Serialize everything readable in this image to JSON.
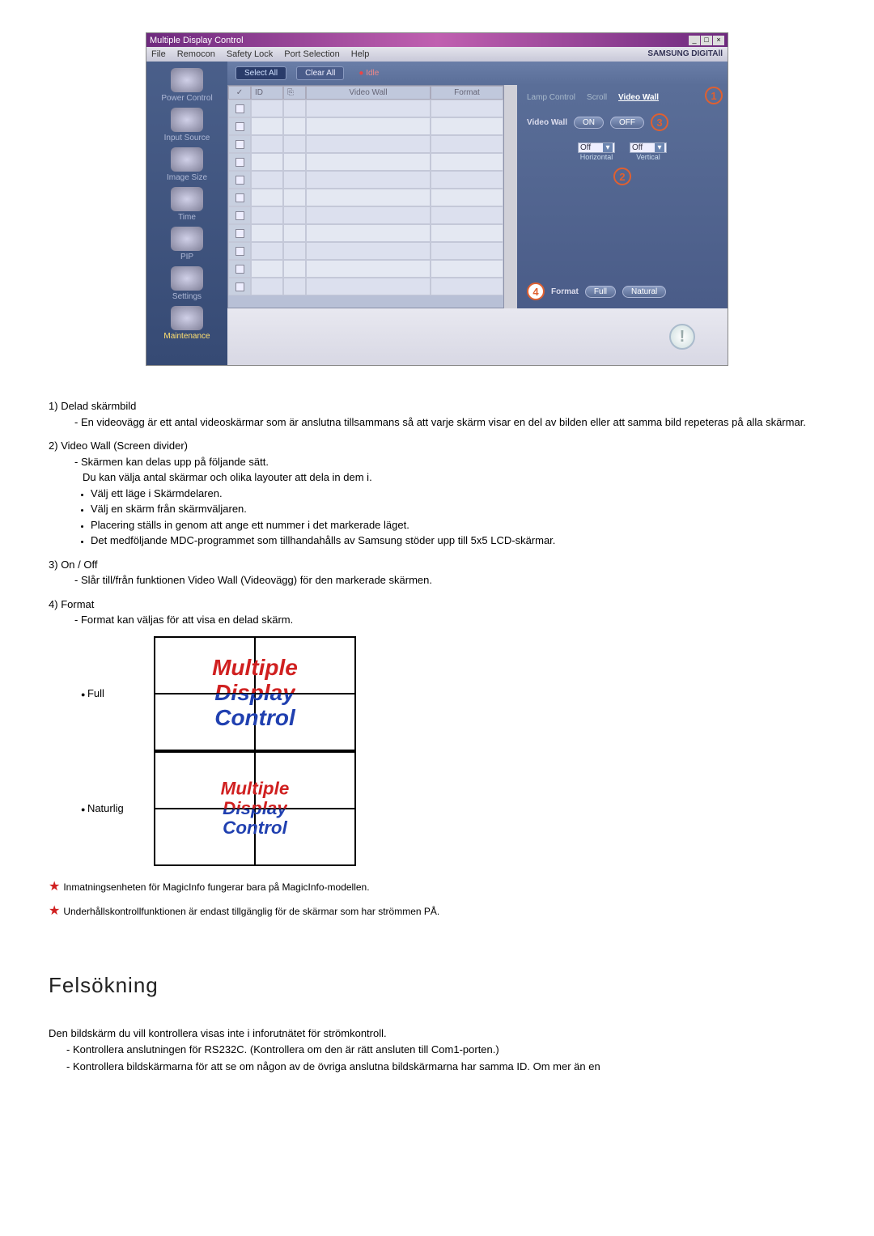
{
  "app": {
    "title": "Multiple Display Control",
    "menu": [
      "File",
      "Remocon",
      "Safety Lock",
      "Port Selection",
      "Help"
    ],
    "brand": "SAMSUNG DIGITAll"
  },
  "sidebar": {
    "items": [
      {
        "label": "Power Control"
      },
      {
        "label": "Input Source"
      },
      {
        "label": "Image Size"
      },
      {
        "label": "Time"
      },
      {
        "label": "PIP"
      },
      {
        "label": "Settings"
      },
      {
        "label": "Maintenance"
      }
    ]
  },
  "toolbar": {
    "select_all": "Select All",
    "clear_all": "Clear All",
    "idle": "Idle"
  },
  "grid": {
    "headers": {
      "chk": "✓",
      "id": "ID",
      "st": "⎘",
      "vw": "Video Wall",
      "fmt": "Format"
    },
    "rows": 11
  },
  "right": {
    "tabs": [
      "Lamp Control",
      "Scroll",
      "Video Wall"
    ],
    "active_tab": 2,
    "videowall_label": "Video Wall",
    "on": "ON",
    "off": "OFF",
    "horiz_label": "Horizontal",
    "vert_label": "Vertical",
    "sel_value": "Off",
    "format_label": "Format",
    "full": "Full",
    "natural": "Natural"
  },
  "doc": {
    "items": [
      {
        "num": "1)",
        "title": "Delad skärmbild",
        "dash": "En videovägg är ett antal videoskärmar som är anslutna tillsammans så att varje skärm visar en del av bilden eller att samma bild repeteras på alla skärmar."
      },
      {
        "num": "2)",
        "title": "Video Wall (Screen divider)",
        "dash": "Skärmen kan delas upp på följande sätt.",
        "line2": "Du kan välja antal skärmar och olika layouter att dela in dem i.",
        "bullets": [
          "Välj ett läge i Skärmdelaren.",
          "Välj en skärm från skärmväljaren.",
          "Placering ställs in genom att ange ett nummer i det markerade läget.",
          "Det medföljande MDC-programmet som tillhandahålls av Samsung stöder upp till 5x5 LCD-skärmar."
        ]
      },
      {
        "num": "3)",
        "title": "On / Off",
        "dash": "Slår till/från funktionen Video Wall (Videovägg) för den markerade skärmen."
      },
      {
        "num": "4)",
        "title": "Format",
        "dash": "Format kan väljas för att visa en delad skärm."
      }
    ],
    "fmt_full": "Full",
    "fmt_natural": "Naturlig",
    "overlay": {
      "l1": "Multiple",
      "l2": "Display",
      "l3": "Control"
    }
  },
  "stars": [
    "Inmatningsenheten för MagicInfo fungerar bara på MagicInfo-modellen.",
    "Underhållskontrollfunktionen är endast tillgänglig för de skärmar som har strömmen PÅ."
  ],
  "troubleshoot": {
    "heading": "Felsökning",
    "item1": "Den bildskärm du vill kontrollera visas inte i inforutnätet för strömkontroll.",
    "sub1": "- Kontrollera anslutningen för RS232C. (Kontrollera om den är rätt ansluten till Com1-porten.)",
    "sub2": "- Kontrollera bildskärmarna för att se om någon av de övriga anslutna bildskärmarna har samma ID. Om mer än en"
  },
  "colors": {
    "callout": "#e06030",
    "star": "#d02020",
    "overlay_red": "#d02020",
    "overlay_blue": "#2040b0"
  }
}
